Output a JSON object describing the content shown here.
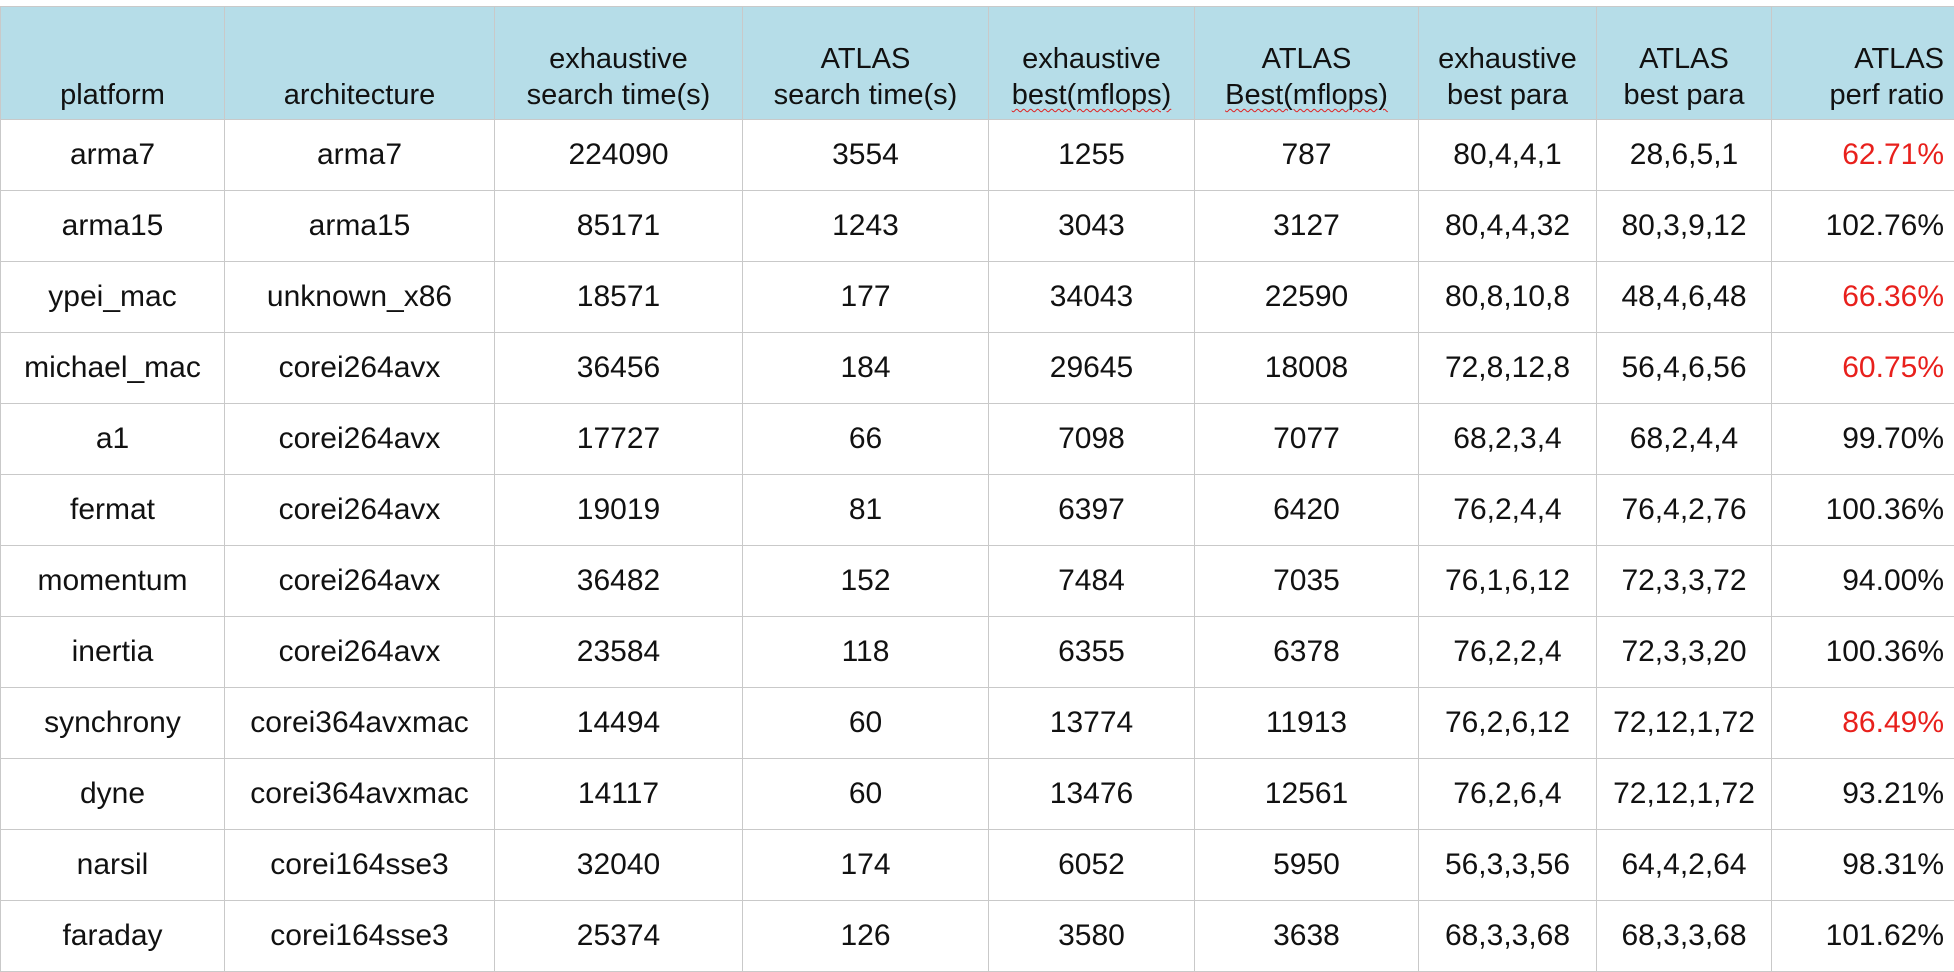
{
  "table": {
    "headers": [
      {
        "line1": "",
        "line2": "platform"
      },
      {
        "line1": "",
        "line2": "architecture"
      },
      {
        "line1": "exhaustive",
        "line2": "search time(s)"
      },
      {
        "line1": "ATLAS",
        "line2": "search time(s)"
      },
      {
        "line1": "exhaustive",
        "line2": "best(mflops)"
      },
      {
        "line1": "ATLAS",
        "line2": "Best(mflops)"
      },
      {
        "line1": "exhaustive",
        "line2": "best para"
      },
      {
        "line1": "ATLAS",
        "line2": "best para"
      },
      {
        "line1": "ATLAS",
        "line2": "perf ratio"
      }
    ],
    "highlight_color": "#e8201c",
    "header_background": "#b6dde8",
    "rows": [
      {
        "platform": "arma7",
        "architecture": "arma7",
        "exh_time": "224090",
        "atlas_time": "3554",
        "exh_best": "1255",
        "atlas_best": "787",
        "exh_para": "80,4,4,1",
        "atlas_para": "28,6,5,1",
        "ratio": "62.71%",
        "low": true
      },
      {
        "platform": "arma15",
        "architecture": "arma15",
        "exh_time": "85171",
        "atlas_time": "1243",
        "exh_best": "3043",
        "atlas_best": "3127",
        "exh_para": "80,4,4,32",
        "atlas_para": "80,3,9,12",
        "ratio": "102.76%",
        "low": false
      },
      {
        "platform": "ypei_mac",
        "architecture": "unknown_x86",
        "exh_time": "18571",
        "atlas_time": "177",
        "exh_best": "34043",
        "atlas_best": "22590",
        "exh_para": "80,8,10,8",
        "atlas_para": "48,4,6,48",
        "ratio": "66.36%",
        "low": true
      },
      {
        "platform": "michael_mac",
        "architecture": "corei264avx",
        "exh_time": "36456",
        "atlas_time": "184",
        "exh_best": "29645",
        "atlas_best": "18008",
        "exh_para": "72,8,12,8",
        "atlas_para": "56,4,6,56",
        "ratio": "60.75%",
        "low": true
      },
      {
        "platform": "a1",
        "architecture": "corei264avx",
        "exh_time": "17727",
        "atlas_time": "66",
        "exh_best": "7098",
        "atlas_best": "7077",
        "exh_para": "68,2,3,4",
        "atlas_para": "68,2,4,4",
        "ratio": "99.70%",
        "low": false
      },
      {
        "platform": "fermat",
        "architecture": "corei264avx",
        "exh_time": "19019",
        "atlas_time": "81",
        "exh_best": "6397",
        "atlas_best": "6420",
        "exh_para": "76,2,4,4",
        "atlas_para": "76,4,2,76",
        "ratio": "100.36%",
        "low": false
      },
      {
        "platform": "momentum",
        "architecture": "corei264avx",
        "exh_time": "36482",
        "atlas_time": "152",
        "exh_best": "7484",
        "atlas_best": "7035",
        "exh_para": "76,1,6,12",
        "atlas_para": "72,3,3,72",
        "ratio": "94.00%",
        "low": false
      },
      {
        "platform": "inertia",
        "architecture": "corei264avx",
        "exh_time": "23584",
        "atlas_time": "118",
        "exh_best": "6355",
        "atlas_best": "6378",
        "exh_para": "76,2,2,4",
        "atlas_para": "72,3,3,20",
        "ratio": "100.36%",
        "low": false
      },
      {
        "platform": "synchrony",
        "architecture": "corei364avxmac",
        "exh_time": "14494",
        "atlas_time": "60",
        "exh_best": "13774",
        "atlas_best": "11913",
        "exh_para": "76,2,6,12",
        "atlas_para": "72,12,1,72",
        "ratio": "86.49%",
        "low": true
      },
      {
        "platform": "dyne",
        "architecture": "corei364avxmac",
        "exh_time": "14117",
        "atlas_time": "60",
        "exh_best": "13476",
        "atlas_best": "12561",
        "exh_para": "76,2,6,4",
        "atlas_para": "72,12,1,72",
        "ratio": "93.21%",
        "low": false
      },
      {
        "platform": "narsil",
        "architecture": "corei164sse3",
        "exh_time": "32040",
        "atlas_time": "174",
        "exh_best": "6052",
        "atlas_best": "5950",
        "exh_para": "56,3,3,56",
        "atlas_para": "64,4,2,64",
        "ratio": "98.31%",
        "low": false
      },
      {
        "platform": "faraday",
        "architecture": "corei164sse3",
        "exh_time": "25374",
        "atlas_time": "126",
        "exh_best": "3580",
        "atlas_best": "3638",
        "exh_para": "68,3,3,68",
        "atlas_para": "68,3,3,68",
        "ratio": "101.62%",
        "low": false
      }
    ]
  }
}
